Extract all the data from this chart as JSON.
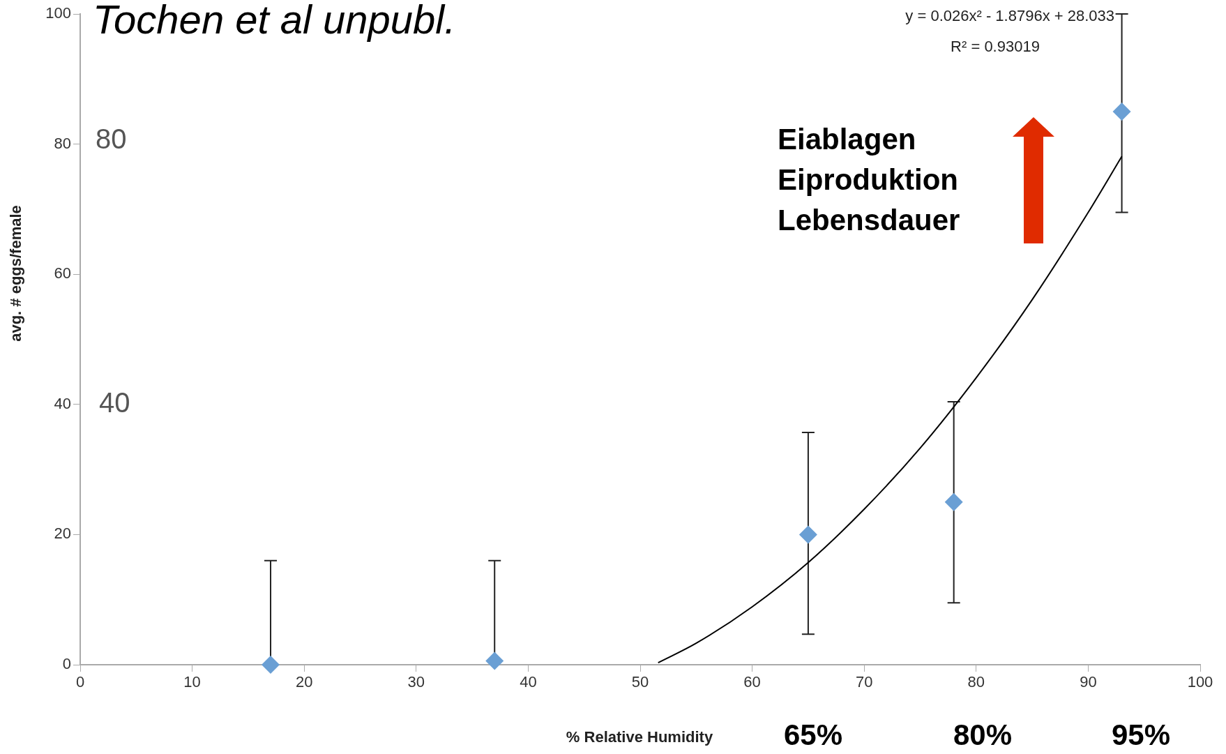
{
  "chart_data": {
    "type": "scatter",
    "title": "Tochen et al unpubl.",
    "xlabel": "% Relative Humidity",
    "ylabel": "avg. # eggs/female",
    "x": [
      17,
      37,
      65,
      78,
      93
    ],
    "xlim": [
      0,
      100
    ],
    "xticks": [
      0,
      10,
      20,
      30,
      40,
      50,
      60,
      70,
      80,
      90,
      100
    ],
    "ylim": [
      0,
      100
    ],
    "yticks": [
      0,
      20,
      40,
      60,
      80,
      100
    ],
    "grid": false,
    "legend": false,
    "marker": "diamond",
    "series": [
      {
        "color": "#6a9fd4",
        "values": [
          0,
          0.6,
          20,
          25,
          85
        ],
        "errors": [
          [
            0,
            16
          ],
          [
            0.6,
            16
          ],
          [
            4.7,
            35.7
          ],
          [
            9.5,
            40.4
          ],
          [
            69.5,
            100
          ]
        ]
      },
      {
        "type": "line",
        "color": "#000000",
        "marker": "none",
        "x": [
          51.6,
          55,
          60,
          65,
          70,
          75,
          80,
          85,
          90,
          93
        ],
        "values": [
          0.3,
          3.3,
          8.9,
          15.7,
          23.9,
          33.3,
          44.1,
          56.1,
          69.5,
          78.1
        ]
      }
    ],
    "annotations": [
      "y = 0.026x² - 1.8796x + 28.033",
      "R² = 0.93019",
      "80",
      "40",
      "Eiablagen",
      "Eiproduktion",
      "Lebensdauer",
      "65%",
      "80%",
      "95%"
    ]
  }
}
